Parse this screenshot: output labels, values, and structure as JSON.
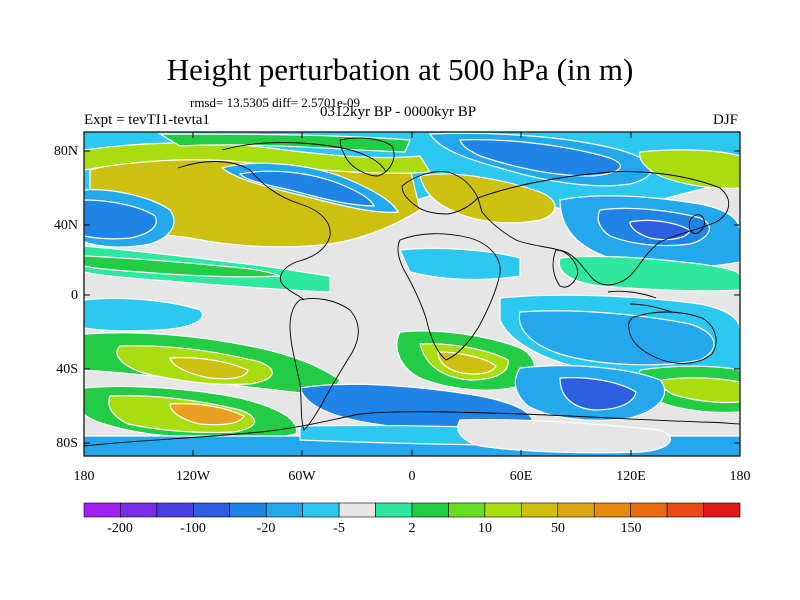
{
  "title": "Height perturbation at 500 hPa (in m)",
  "stats": "rmsd= 13.5305 diff= 2.5701e-09",
  "experiment": "Expt = tevTI1-tevta1",
  "period": "0312kyr BP - 0000kyr BP",
  "season": "DJF",
  "lat_ticks": [
    "80N",
    "40N",
    "0",
    "40S",
    "80S"
  ],
  "lon_ticks": [
    "180",
    "120W",
    "60W",
    "0",
    "60E",
    "120E",
    "180"
  ],
  "colorbar": {
    "labels": [
      "-200",
      "-100",
      "-20",
      "-5",
      "2",
      "10",
      "50",
      "150"
    ],
    "colors": [
      "#a020f0",
      "#7a2be6",
      "#4a3fe0",
      "#2c5fe0",
      "#1f84e6",
      "#23a8ee",
      "#2cc8f0",
      "#e6e6e6",
      "#2ee8a0",
      "#22cc44",
      "#66dd22",
      "#aadd10",
      "#ccc010",
      "#dda818",
      "#e88a10",
      "#e86a10",
      "#e84a12",
      "#e01818"
    ]
  },
  "map_colors": {
    "neutral": "#e6e6e6",
    "light_blue": "#2cc8f0",
    "blue": "#23a8ee",
    "mid_blue": "#1f84e6",
    "dark_blue": "#2c5fe0",
    "deep_blue": "#4a3fe0",
    "light_green": "#2ee8a0",
    "green": "#22cc44",
    "yellow_green": "#aadd10",
    "olive": "#ccc010",
    "orange": "#e8a020"
  }
}
